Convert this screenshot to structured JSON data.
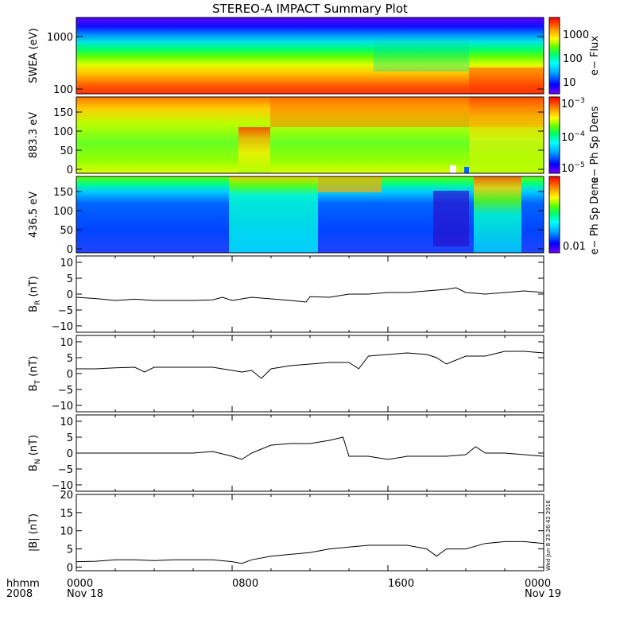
{
  "title": "STEREO-A IMPACT Summary Plot",
  "timestamp_label": "Wed Jun  8 23:26:42 2016",
  "x_axis": {
    "row1_left": "hhmm",
    "row2_left": "2008",
    "ticks": [
      "0000",
      "0800",
      "1600",
      "0000"
    ],
    "dates": [
      "Nov 18",
      "Nov 19"
    ]
  },
  "colors": {
    "scale": [
      "#7a00ff",
      "#0000ff",
      "#00aaff",
      "#00ffff",
      "#00ff66",
      "#66ff00",
      "#ffff00",
      "#ffaa00",
      "#ff4400",
      "#ff0000"
    ],
    "line": "#000000",
    "frame": "#000000"
  },
  "chart_data": [
    {
      "type": "heatmap",
      "ylabel": "SWEA (eV)",
      "yscale": "log",
      "ylim": [
        90,
        2000
      ],
      "yticks": [
        "1000",
        "100"
      ],
      "colorbar": {
        "label": "e−  Flux",
        "scale": "log",
        "ticks": [
          "1000",
          "100",
          "10"
        ]
      }
    },
    {
      "type": "heatmap",
      "ylabel": "883.3 eV",
      "ylim": [
        0,
        180
      ],
      "yticks": [
        "0",
        "50",
        "100",
        "150"
      ],
      "colorbar": {
        "label": "e−  Ph Sp Dens",
        "scale": "log",
        "ticks": [
          "10",
          "10",
          "10"
        ],
        "tick_exponents": [
          "−3",
          "−4",
          "−5"
        ]
      }
    },
    {
      "type": "heatmap",
      "ylabel": "436.5 eV",
      "ylim": [
        0,
        180
      ],
      "yticks": [
        "0",
        "50",
        "100",
        "150"
      ],
      "colorbar": {
        "label": "e−  Ph Sp Dens",
        "scale": "log",
        "ticks": [
          "0.01"
        ]
      }
    },
    {
      "type": "line",
      "ylabel": "B",
      "ylabel_sub": "R",
      "ylabel_unit": " (nT)",
      "ylim": [
        -12,
        12
      ],
      "yticks": [
        "−10",
        "−5",
        "0",
        "5",
        "10"
      ],
      "xlim_hours": [
        0,
        24
      ],
      "x_hours": [
        0,
        1,
        2,
        3,
        4,
        5,
        6,
        7,
        7.5,
        8,
        9,
        10,
        11,
        11.8,
        12,
        13,
        14,
        15,
        16,
        17,
        18,
        19,
        19.5,
        20,
        21,
        22,
        23,
        24
      ],
      "y": [
        -1,
        -1.4,
        -2,
        -1.6,
        -2,
        -2,
        -2,
        -1.8,
        -1,
        -2,
        -1,
        -1.5,
        -2,
        -2.5,
        -0.8,
        -1,
        0,
        0,
        0.5,
        0.5,
        1,
        1.5,
        2,
        0.5,
        0,
        0.5,
        1,
        0.5
      ]
    },
    {
      "type": "line",
      "ylabel": "B",
      "ylabel_sub": "T",
      "ylabel_unit": " (nT)",
      "ylim": [
        -12,
        12
      ],
      "yticks": [
        "−10",
        "−5",
        "0",
        "5",
        "10"
      ],
      "xlim_hours": [
        0,
        24
      ],
      "x_hours": [
        0,
        1,
        2,
        3,
        3.5,
        4,
        5,
        6,
        7,
        8,
        8.5,
        9,
        9.5,
        10,
        11,
        12,
        13,
        14,
        14.5,
        15,
        16,
        17,
        18,
        18.5,
        19,
        20,
        21,
        22,
        23,
        24
      ],
      "y": [
        1.5,
        1.5,
        1.8,
        2,
        0.5,
        2,
        2,
        2,
        2,
        1,
        0.5,
        1,
        -1.5,
        1.5,
        2.5,
        3,
        3.5,
        3.5,
        1.5,
        5.5,
        6,
        6.5,
        6,
        5,
        3,
        5.5,
        5.5,
        7,
        7,
        6.5
      ]
    },
    {
      "type": "line",
      "ylabel": "B",
      "ylabel_sub": "N",
      "ylabel_unit": " (nT)",
      "ylim": [
        -12,
        12
      ],
      "yticks": [
        "−10",
        "−5",
        "0",
        "5",
        "10"
      ],
      "xlim_hours": [
        0,
        24
      ],
      "x_hours": [
        0,
        1,
        2,
        3,
        4,
        5,
        6,
        7,
        8,
        8.5,
        9,
        10,
        11,
        12,
        13,
        13.7,
        14,
        15,
        16,
        17,
        18,
        19,
        20,
        20.5,
        21,
        22,
        23,
        24
      ],
      "y": [
        0,
        0,
        0,
        0,
        0,
        0,
        0,
        0.5,
        -1,
        -2,
        0,
        2.5,
        3,
        3,
        4,
        5,
        -1,
        -1,
        -2,
        -1,
        -1,
        -1,
        -0.5,
        2,
        0,
        0,
        -0.5,
        -1
      ]
    },
    {
      "type": "line",
      "ylabel": "|B|",
      "ylabel_unit": " (nT)",
      "ylim": [
        -1,
        20
      ],
      "yticks": [
        "0",
        "5",
        "10",
        "15",
        "20"
      ],
      "xlim_hours": [
        0,
        24
      ],
      "x_hours": [
        0,
        1,
        2,
        3,
        4,
        5,
        6,
        7,
        8,
        8.5,
        9,
        10,
        11,
        12,
        13,
        14,
        15,
        16,
        17,
        18,
        18.5,
        19,
        20,
        21,
        22,
        23,
        24
      ],
      "y": [
        1.5,
        1.6,
        2,
        2,
        1.8,
        2,
        2,
        2,
        1.5,
        1,
        2,
        3,
        3.5,
        4,
        5,
        5.5,
        6,
        6,
        6,
        5,
        3,
        5,
        5,
        6.5,
        7,
        7,
        6.5
      ]
    }
  ]
}
